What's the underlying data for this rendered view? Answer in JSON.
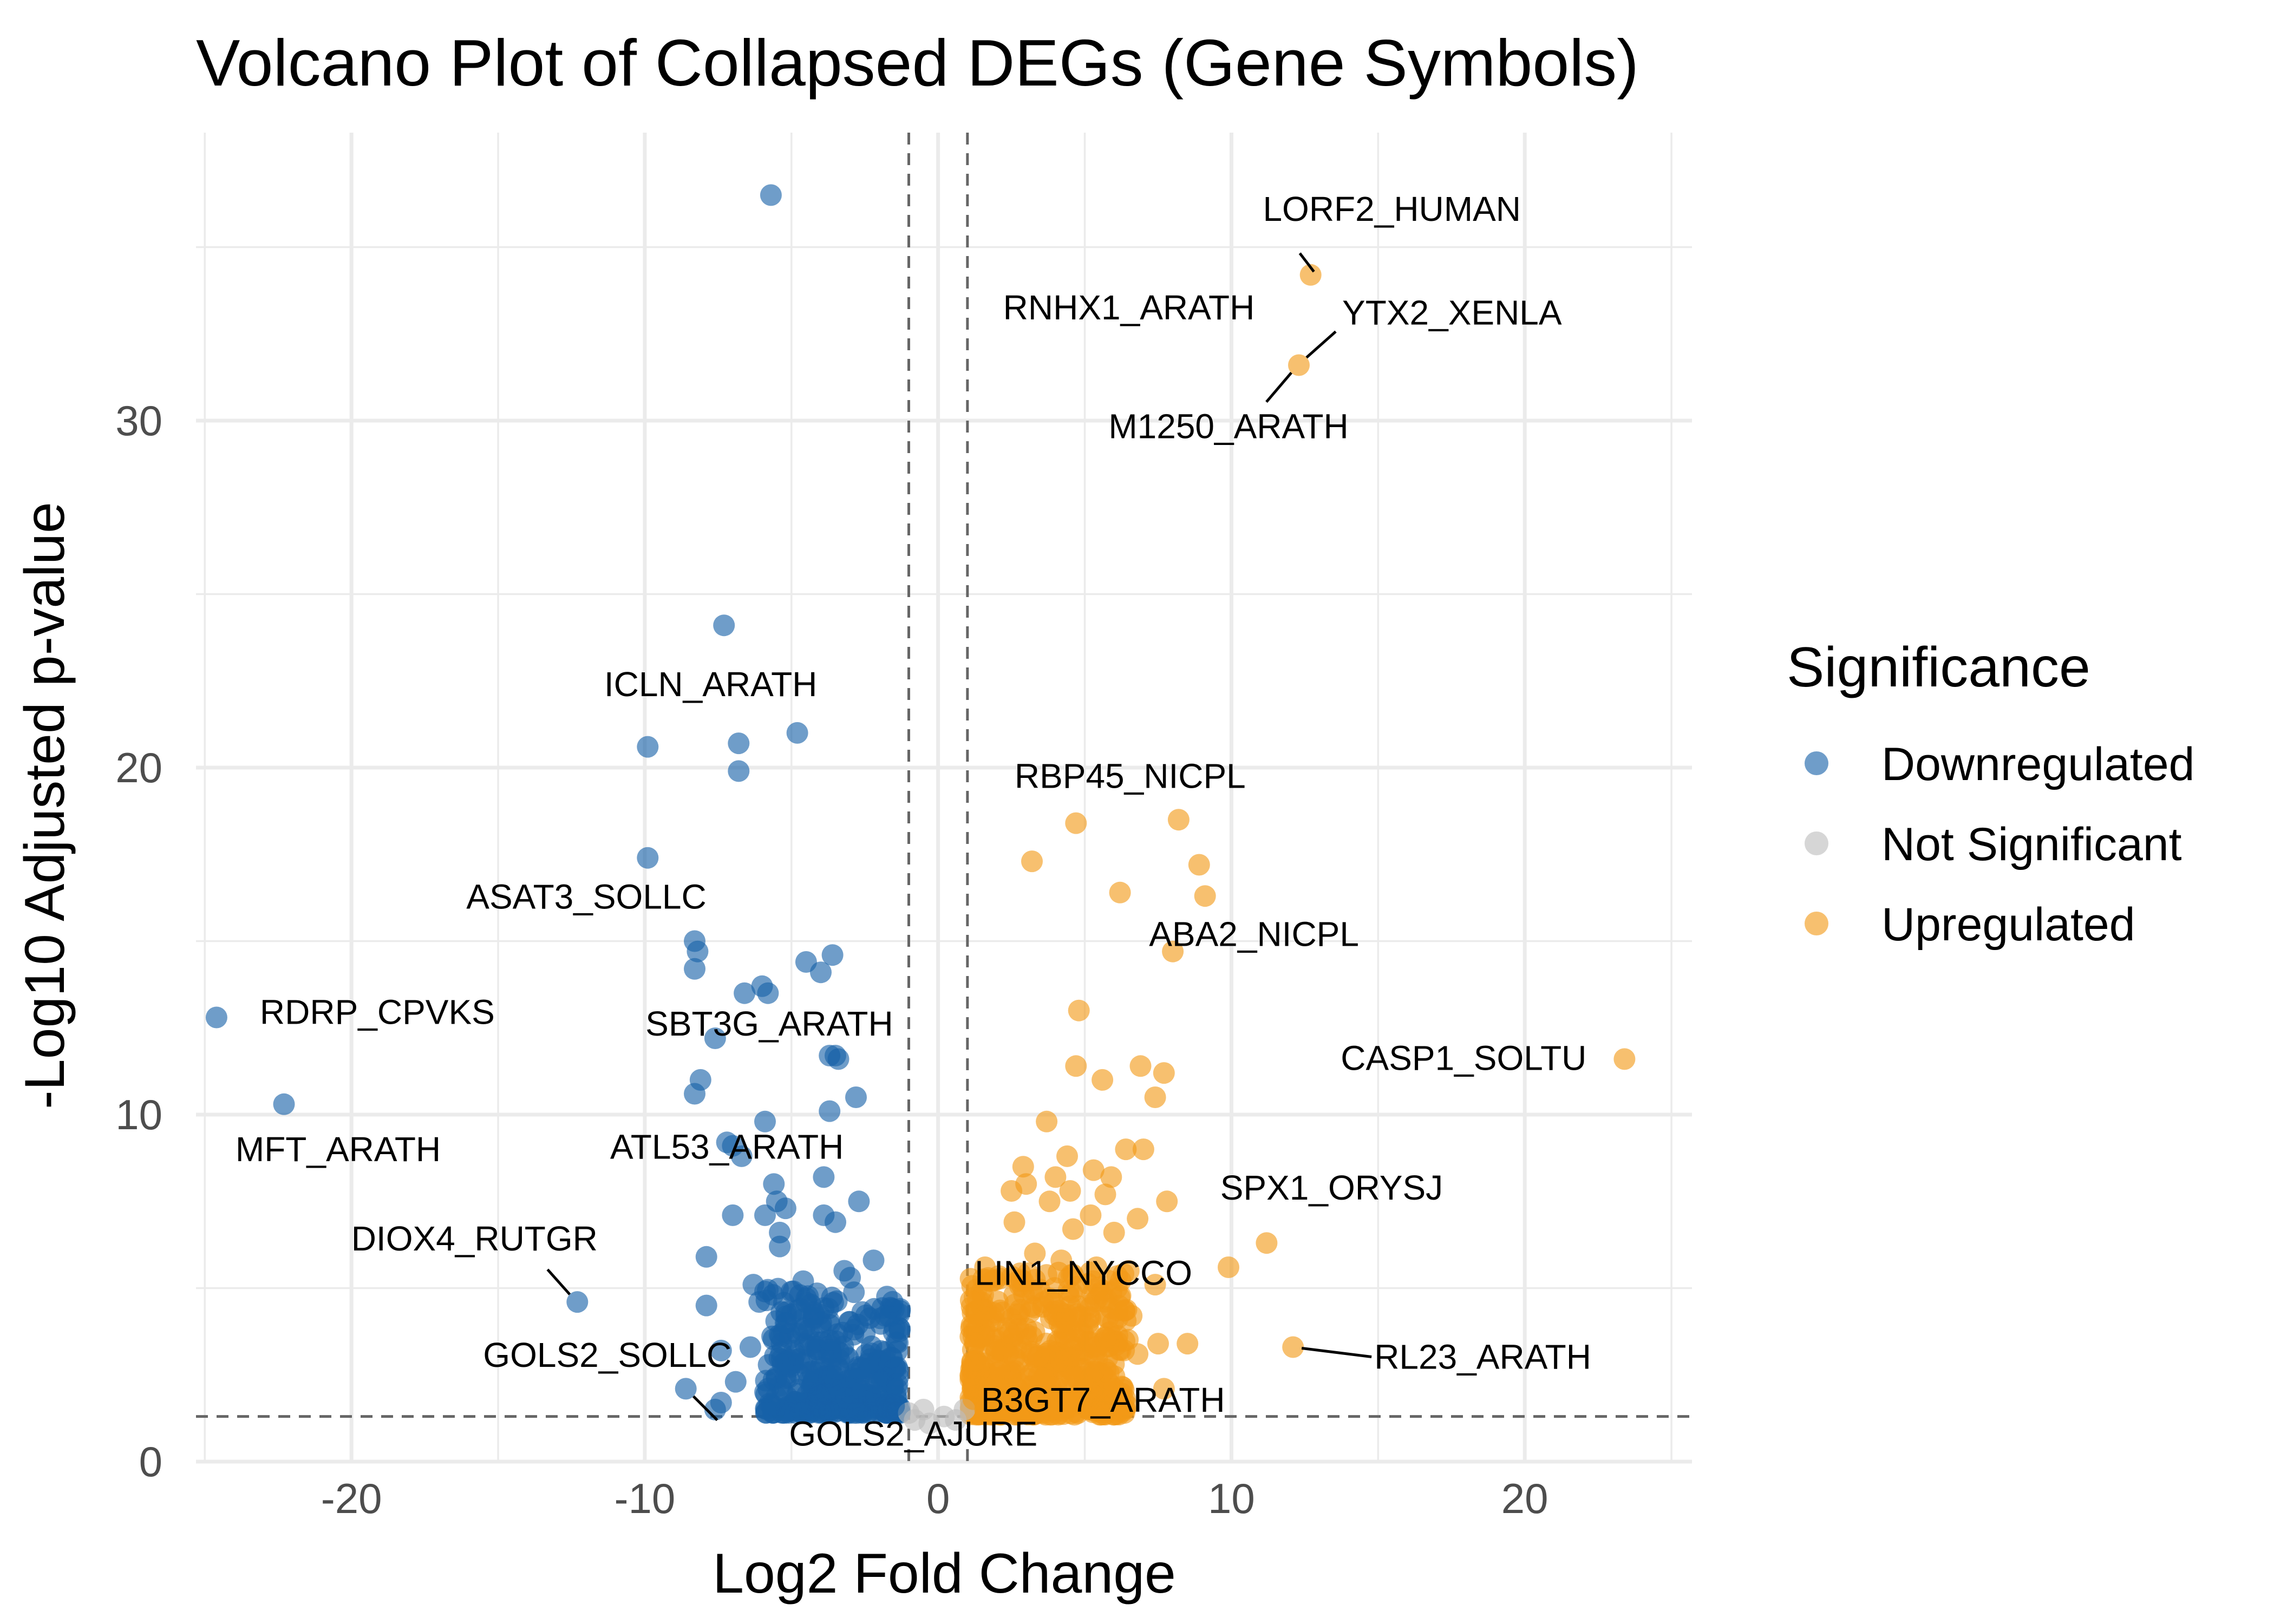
{
  "chart_data": {
    "type": "scatter",
    "title": "Volcano Plot of Collapsed DEGs (Gene Symbols)",
    "xlabel": "Log2 Fold Change",
    "ylabel": "-Log10 Adjusted p-value",
    "xlim": [
      -25.3,
      25.7
    ],
    "ylim": [
      0,
      38.3
    ],
    "x_ticks": [
      -20,
      -10,
      0,
      10,
      20
    ],
    "y_ticks": [
      0,
      10,
      20,
      30
    ],
    "x_tick_labels": [
      "-20",
      "-10",
      "0",
      "10",
      "20"
    ],
    "y_tick_labels": [
      "0",
      "10",
      "20",
      "30"
    ],
    "grid": true,
    "thresholds": {
      "log2fc": [
        -1,
        1
      ],
      "neg_log10_padj": 1.3
    },
    "legend": {
      "title": "Significance",
      "placement": "right",
      "entries": [
        {
          "name": "Downregulated",
          "color": "#1761a8"
        },
        {
          "name": "Not Significant",
          "color": "#bdbdbd"
        },
        {
          "name": "Upregulated",
          "color": "#f29a17"
        }
      ]
    },
    "series": [
      {
        "name": "Downregulated",
        "color": "#1761a8",
        "points": [
          [
            -5.7,
            36.5
          ],
          [
            -7.3,
            24.1
          ],
          [
            -4.8,
            21.0
          ],
          [
            -9.9,
            20.6
          ],
          [
            -6.8,
            20.7
          ],
          [
            -6.8,
            19.9
          ],
          [
            -9.9,
            17.4
          ],
          [
            -8.3,
            15.0
          ],
          [
            -8.2,
            14.7
          ],
          [
            -8.3,
            14.2
          ],
          [
            -4.5,
            14.4
          ],
          [
            -3.6,
            14.6
          ],
          [
            -4.0,
            14.1
          ],
          [
            -6.0,
            13.7
          ],
          [
            -6.6,
            13.5
          ],
          [
            -5.8,
            13.5
          ],
          [
            -7.6,
            12.2
          ],
          [
            -3.7,
            11.7
          ],
          [
            -3.5,
            11.7
          ],
          [
            -3.4,
            11.6
          ],
          [
            -2.8,
            10.5
          ],
          [
            -8.1,
            11.0
          ],
          [
            -8.3,
            10.6
          ],
          [
            -3.7,
            10.1
          ],
          [
            -5.9,
            9.8
          ],
          [
            -7.2,
            9.2
          ],
          [
            -7.0,
            9.1
          ],
          [
            -6.7,
            8.8
          ],
          [
            -3.9,
            8.2
          ],
          [
            -5.6,
            8.0
          ],
          [
            -5.5,
            7.5
          ],
          [
            -2.7,
            7.5
          ],
          [
            -5.2,
            7.3
          ],
          [
            -7.0,
            7.1
          ],
          [
            -3.9,
            7.1
          ],
          [
            -5.9,
            7.1
          ],
          [
            -3.5,
            6.9
          ],
          [
            -5.4,
            6.6
          ],
          [
            -5.4,
            6.2
          ],
          [
            -7.9,
            5.9
          ],
          [
            -3.2,
            5.5
          ],
          [
            -4.6,
            5.2
          ],
          [
            -6.3,
            5.1
          ],
          [
            -5.9,
            4.9
          ],
          [
            -5.0,
            4.9
          ],
          [
            -2.2,
            5.8
          ],
          [
            -3.0,
            5.3
          ],
          [
            -6.1,
            4.6
          ],
          [
            -4.7,
            4.4
          ],
          [
            -7.9,
            4.5
          ],
          [
            -5.2,
            4.0
          ],
          [
            -1.8,
            4.2
          ],
          [
            -7.4,
            3.2
          ],
          [
            -6.4,
            3.3
          ],
          [
            -4.4,
            3.8
          ],
          [
            -3.7,
            3.5
          ],
          [
            -2.5,
            3.7
          ],
          [
            -4.9,
            3.2
          ],
          [
            -1.6,
            3.0
          ],
          [
            -3.2,
            3.1
          ],
          [
            -2.0,
            2.9
          ],
          [
            -5.3,
            2.8
          ],
          [
            -4.3,
            2.6
          ],
          [
            -2.7,
            2.4
          ],
          [
            -6.9,
            2.3
          ],
          [
            -3.5,
            2.2
          ],
          [
            -1.4,
            2.1
          ],
          [
            -5.9,
            2.0
          ],
          [
            -4.0,
            1.8
          ],
          [
            -2.2,
            1.8
          ],
          [
            -3.0,
            1.6
          ],
          [
            -1.5,
            1.6
          ],
          [
            -8.6,
            2.1
          ],
          [
            -7.4,
            1.7
          ],
          [
            -7.6,
            1.5
          ],
          [
            -12.3,
            4.6
          ],
          [
            -22.3,
            10.3
          ],
          [
            -24.6,
            12.8
          ]
        ]
      },
      {
        "name": "Not Significant",
        "color": "#bdbdbd",
        "points": [
          [
            -1.0,
            1.4
          ],
          [
            -0.8,
            1.2
          ],
          [
            -0.5,
            1.5
          ],
          [
            -0.3,
            1.1
          ],
          [
            0.2,
            1.3
          ],
          [
            0.6,
            1.2
          ],
          [
            0.9,
            1.5
          ]
        ]
      },
      {
        "name": "Upregulated",
        "color": "#f29a17",
        "points": [
          [
            12.7,
            34.2
          ],
          [
            12.3,
            31.6
          ],
          [
            4.7,
            18.4
          ],
          [
            8.2,
            18.5
          ],
          [
            3.2,
            17.3
          ],
          [
            8.9,
            17.2
          ],
          [
            6.2,
            16.4
          ],
          [
            9.1,
            16.3
          ],
          [
            8.0,
            14.7
          ],
          [
            4.8,
            13.0
          ],
          [
            23.4,
            11.6
          ],
          [
            4.7,
            11.4
          ],
          [
            7.7,
            11.2
          ],
          [
            6.9,
            11.4
          ],
          [
            5.6,
            11.0
          ],
          [
            7.4,
            10.5
          ],
          [
            3.7,
            9.8
          ],
          [
            2.9,
            8.5
          ],
          [
            4.4,
            8.8
          ],
          [
            5.3,
            8.4
          ],
          [
            6.4,
            9.0
          ],
          [
            7.0,
            9.0
          ],
          [
            4.0,
            8.2
          ],
          [
            5.9,
            8.2
          ],
          [
            3.0,
            8.0
          ],
          [
            2.5,
            7.8
          ],
          [
            4.5,
            7.8
          ],
          [
            5.7,
            7.7
          ],
          [
            7.8,
            7.5
          ],
          [
            3.8,
            7.5
          ],
          [
            5.2,
            7.1
          ],
          [
            6.8,
            7.0
          ],
          [
            2.6,
            6.9
          ],
          [
            4.6,
            6.7
          ],
          [
            6.0,
            6.6
          ],
          [
            11.2,
            6.3
          ],
          [
            3.3,
            6.0
          ],
          [
            4.2,
            5.8
          ],
          [
            5.4,
            5.6
          ],
          [
            9.9,
            5.6
          ],
          [
            1.6,
            5.6
          ],
          [
            2.9,
            5.2
          ],
          [
            6.1,
            5.0
          ],
          [
            7.4,
            5.1
          ],
          [
            3.9,
            4.6
          ],
          [
            5.1,
            4.5
          ],
          [
            2.2,
            4.3
          ],
          [
            6.6,
            4.2
          ],
          [
            4.4,
            4.0
          ],
          [
            1.8,
            3.6
          ],
          [
            3.2,
            3.6
          ],
          [
            5.7,
            3.5
          ],
          [
            12.1,
            3.3
          ],
          [
            8.5,
            3.4
          ],
          [
            7.5,
            3.4
          ],
          [
            6.8,
            3.1
          ],
          [
            2.6,
            3.0
          ],
          [
            4.2,
            2.9
          ],
          [
            1.4,
            2.8
          ],
          [
            5.3,
            2.6
          ],
          [
            3.6,
            2.4
          ],
          [
            2.0,
            2.2
          ],
          [
            6.0,
            2.1
          ],
          [
            4.7,
            1.9
          ],
          [
            1.2,
            1.8
          ],
          [
            2.9,
            1.7
          ],
          [
            5.6,
            1.6
          ],
          [
            3.8,
            1.5
          ],
          [
            1.6,
            1.5
          ],
          [
            7.7,
            2.1
          ],
          [
            2.1,
            2.6
          ],
          [
            4.9,
            3.7
          ]
        ]
      }
    ],
    "labels": [
      {
        "text": "LORF2_HUMAN",
        "x": 12.7,
        "y": 34.2
      },
      {
        "text": "RNHX1_ARATH",
        "x": 6.4,
        "y": 32.9
      },
      {
        "text": "YTX2_XENLA",
        "x": 12.3,
        "y": 31.6
      },
      {
        "text": "M1250_ARATH",
        "x": 12.3,
        "y": 31.6
      },
      {
        "text": "ICLN_ARATH",
        "x": -4.8,
        "y": 21.0
      },
      {
        "text": "RBP45_NICPL",
        "x": 4.7,
        "y": 18.4
      },
      {
        "text": "ASAT3_SOLLC",
        "x": -8.3,
        "y": 15.0
      },
      {
        "text": "ABA2_NICPL",
        "x": 8.0,
        "y": 14.7
      },
      {
        "text": "RDRP_CPVKS",
        "x": -24.6,
        "y": 12.8
      },
      {
        "text": "SBT3G_ARATH",
        "x": -7.6,
        "y": 12.2
      },
      {
        "text": "CASP1_SOLTU",
        "x": 23.4,
        "y": 11.6
      },
      {
        "text": "MFT_ARATH",
        "x": -22.3,
        "y": 10.3
      },
      {
        "text": "ATL53_ARATH",
        "x": -7.2,
        "y": 9.2
      },
      {
        "text": "SPX1_ORYSJ",
        "x": 11.2,
        "y": 6.3
      },
      {
        "text": "DIOX4_RUTGR",
        "x": -12.3,
        "y": 4.6
      },
      {
        "text": "LIN1_NYCCO",
        "x": 4.4,
        "y": 4.0
      },
      {
        "text": "GOLS2_SOLLC",
        "x": -7.4,
        "y": 3.2
      },
      {
        "text": "RL23_ARATH",
        "x": 12.1,
        "y": 3.3
      },
      {
        "text": "B3GT7_ARATH",
        "x": 4.7,
        "y": 1.9
      },
      {
        "text": "GOLS2_AJURE",
        "x": -8.6,
        "y": 2.1
      }
    ]
  }
}
